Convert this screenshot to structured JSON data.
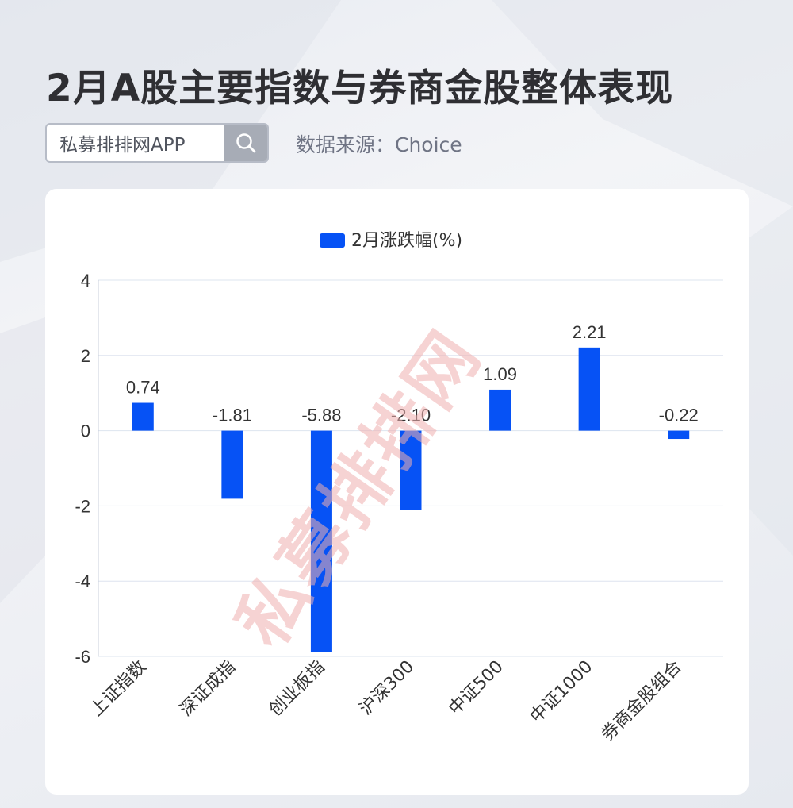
{
  "header": {
    "title": "2月A股主要指数与券商金股整体表现",
    "search_text": "私募排排网APP",
    "source": "数据来源：Choice"
  },
  "watermark": "私募排排网",
  "colors": {
    "bar": "#0652f5",
    "watermark": "#f0b0b0",
    "grid": "#dde4ef",
    "axis_text": "#333333"
  },
  "chart_data": {
    "type": "bar",
    "categories": [
      "上证指数",
      "深证成指",
      "创业板指",
      "沪深300",
      "中证500",
      "中证1000",
      "券商金股组合"
    ],
    "series": [
      {
        "name": "2月涨跌幅(%)",
        "values": [
          0.74,
          -1.81,
          -5.88,
          -2.1,
          1.09,
          2.21,
          -0.22
        ]
      }
    ],
    "data_labels": [
      "0.74",
      "-1.81",
      "-5.88",
      "-2.10",
      "1.09",
      "2.21",
      "-0.22"
    ],
    "ylim": [
      -6,
      4
    ],
    "yticks": [
      "-6",
      "-4",
      "-2",
      "0",
      "2",
      "4"
    ],
    "grid": true,
    "legend": "top-center"
  }
}
